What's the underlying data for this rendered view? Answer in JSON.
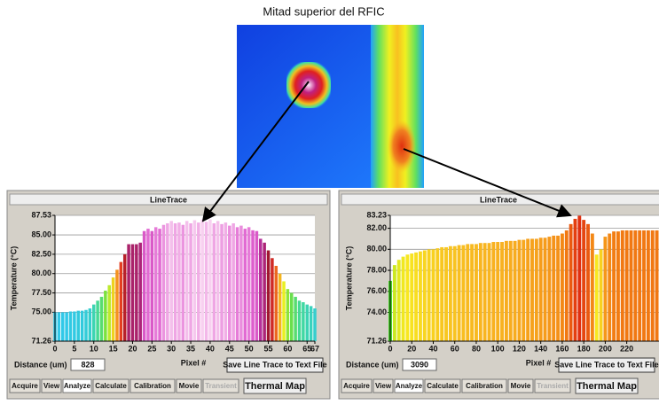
{
  "title": "Mitad superior del RFIC",
  "chart_data": [
    {
      "type": "bar",
      "title": "LineTrace",
      "ylabel": "Temperature (°C)",
      "xlabel": "Pixel #",
      "x": [
        0,
        1,
        2,
        3,
        4,
        5,
        6,
        7,
        8,
        9,
        10,
        11,
        12,
        13,
        14,
        15,
        16,
        17,
        18,
        19,
        20,
        21,
        22,
        23,
        24,
        25,
        26,
        27,
        28,
        29,
        30,
        31,
        32,
        33,
        34,
        35,
        36,
        37,
        38,
        39,
        40,
        41,
        42,
        43,
        44,
        45,
        46,
        47,
        48,
        49,
        50,
        51,
        52,
        53,
        54,
        55,
        56,
        57,
        58,
        59,
        60,
        61,
        62,
        63,
        64,
        65,
        66,
        67
      ],
      "values": [
        75.0,
        75.0,
        75.0,
        75.0,
        75.1,
        75.1,
        75.2,
        75.2,
        75.3,
        75.5,
        76.0,
        76.5,
        77.0,
        77.8,
        78.5,
        79.5,
        80.5,
        81.5,
        82.5,
        83.8,
        83.8,
        83.8,
        84.0,
        85.5,
        85.8,
        85.5,
        86.0,
        85.8,
        86.3,
        86.5,
        86.8,
        86.5,
        86.6,
        86.3,
        86.8,
        86.5,
        86.9,
        86.6,
        87.0,
        86.7,
        87.0,
        86.5,
        86.8,
        86.4,
        86.6,
        86.2,
        86.5,
        86.0,
        86.2,
        85.8,
        86.0,
        85.6,
        85.5,
        84.5,
        84.0,
        83.0,
        82.0,
        81.0,
        80.0,
        79.0,
        78.0,
        77.5,
        77.0,
        76.5,
        76.3,
        76.0,
        75.8,
        75.5
      ],
      "colormap": [
        "#30c8e8",
        "#40d8a0",
        "#70e040",
        "#e8f020",
        "#f8a020",
        "#e03020",
        "#a01830",
        "#b02890",
        "#e060d0",
        "#f8d0f0"
      ],
      "xlim": [
        0,
        67
      ],
      "xticks": [
        0,
        5,
        10,
        15,
        20,
        25,
        30,
        35,
        40,
        45,
        50,
        55,
        60,
        65,
        67
      ],
      "ylim": [
        71.26,
        87.53
      ],
      "yticks": [
        71.26,
        {
          "value": 75,
          "label": "75.00"
        },
        {
          "value": 77.5,
          "label": "77.50"
        },
        {
          "value": 80,
          "label": "80.00"
        },
        {
          "value": 82.5,
          "label": "82.50"
        },
        {
          "value": 85,
          "label": "85.00"
        },
        87.53
      ],
      "grid": true
    },
    {
      "type": "bar",
      "title": "LineTrace",
      "ylabel": "Temperature (°C)",
      "xlabel": "Pixel #",
      "x": [
        0,
        4,
        8,
        12,
        16,
        20,
        24,
        28,
        32,
        36,
        40,
        44,
        48,
        52,
        56,
        60,
        64,
        68,
        72,
        76,
        80,
        84,
        88,
        92,
        96,
        100,
        104,
        108,
        112,
        116,
        120,
        124,
        128,
        132,
        136,
        140,
        144,
        148,
        152,
        156,
        160,
        164,
        168,
        172,
        176,
        180,
        184,
        188,
        192,
        196,
        200,
        204,
        208,
        212,
        216,
        220,
        224,
        228,
        232,
        236,
        240,
        244,
        248
      ],
      "values": [
        77.0,
        78.5,
        79.0,
        79.3,
        79.5,
        79.6,
        79.7,
        79.8,
        79.9,
        80.0,
        80.0,
        80.1,
        80.2,
        80.2,
        80.3,
        80.3,
        80.4,
        80.4,
        80.5,
        80.5,
        80.5,
        80.6,
        80.6,
        80.6,
        80.7,
        80.7,
        80.7,
        80.8,
        80.8,
        80.8,
        80.9,
        80.9,
        81.0,
        81.0,
        81.0,
        81.1,
        81.1,
        81.2,
        81.3,
        81.3,
        81.5,
        81.8,
        82.4,
        82.9,
        83.2,
        82.8,
        82.4,
        81.5,
        79.5,
        80.0,
        81.2,
        81.5,
        81.7,
        81.7,
        81.8,
        81.8,
        81.8,
        81.8,
        81.8,
        81.8,
        81.8,
        81.8,
        81.8
      ],
      "colormap": [
        "#40d020",
        "#c0e820",
        "#f8e820",
        "#f8b020",
        "#f07010",
        "#e03010"
      ],
      "xlim": [
        0,
        250
      ],
      "xticks": [
        0,
        20,
        40,
        60,
        80,
        100,
        120,
        140,
        160,
        180,
        200,
        220
      ],
      "ylim": [
        71.26,
        83.23
      ],
      "yticks": [
        71.26,
        {
          "value": 74,
          "label": "74.00"
        },
        {
          "value": 76,
          "label": "76.00"
        },
        {
          "value": 78,
          "label": "78.00"
        },
        {
          "value": 80,
          "label": "80.00"
        },
        {
          "value": 82,
          "label": "82.00"
        },
        83.23
      ],
      "grid": true
    }
  ],
  "panels": [
    {
      "distance_label": "Distance (um)",
      "distance": 828,
      "save_button": "Save Line Trace to Text File",
      "tabs": [
        "Acquire",
        "View",
        "Analyze",
        "Calculate",
        "Calibration",
        "Movie",
        "Transient"
      ],
      "map_button": "Thermal Map"
    },
    {
      "distance_label": "Distance (um)",
      "distance": 3090,
      "save_button": "Save Line Trace to Text File",
      "tabs": [
        "Acquire",
        "View",
        "Analyze",
        "Calculate",
        "Calibration",
        "Movie",
        "Transient"
      ],
      "map_button": "Thermal Map"
    }
  ]
}
